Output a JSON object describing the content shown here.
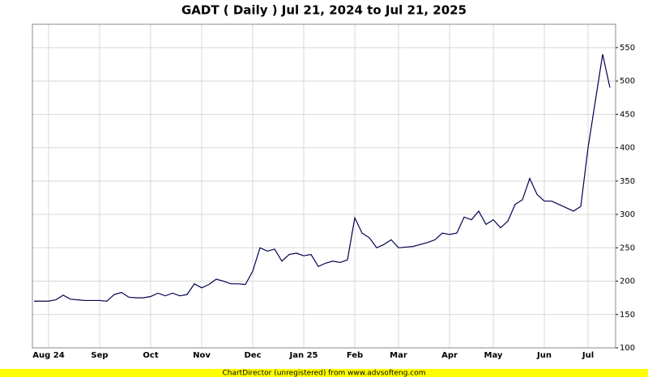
{
  "chart_data": {
    "type": "line",
    "title": "GADT ( Daily ) Jul 21, 2024 to Jul 21, 2025",
    "footer": "ChartDirector (unregistered) from www.advsofteng.com",
    "categories": [
      null,
      null,
      "Aug 24",
      null,
      null,
      null,
      null,
      null,
      null,
      "Sep",
      null,
      null,
      null,
      null,
      null,
      null,
      "Oct",
      null,
      null,
      null,
      null,
      null,
      null,
      "Nov",
      null,
      null,
      null,
      null,
      null,
      null,
      "Dec",
      null,
      null,
      null,
      null,
      null,
      null,
      "Jan 25",
      null,
      null,
      null,
      null,
      null,
      null,
      "Feb",
      null,
      null,
      null,
      null,
      null,
      "Mar",
      null,
      null,
      null,
      null,
      null,
      null,
      "Apr",
      null,
      null,
      null,
      null,
      null,
      "May",
      null,
      null,
      null,
      null,
      null,
      null,
      "Jun",
      null,
      null,
      null,
      null,
      null,
      "Jul",
      null,
      null,
      null
    ],
    "values": [
      170,
      170,
      170,
      172,
      179,
      173,
      172,
      171,
      171,
      171,
      170,
      180,
      183,
      176,
      175,
      175,
      177,
      182,
      178,
      182,
      178,
      180,
      196,
      190,
      195,
      203,
      200,
      196,
      196,
      195,
      215,
      250,
      245,
      248,
      230,
      240,
      242,
      238,
      240,
      222,
      227,
      230,
      228,
      232,
      295,
      272,
      265,
      250,
      255,
      262,
      250,
      251,
      252,
      255,
      258,
      262,
      272,
      270,
      272,
      296,
      292,
      305,
      285,
      292,
      280,
      290,
      315,
      322,
      354,
      330,
      320,
      320,
      315,
      310,
      305,
      312,
      400,
      470,
      540,
      490
    ],
    "color": "#000050",
    "ylim": [
      100,
      585
    ],
    "yticks": [
      100,
      150,
      200,
      250,
      300,
      350,
      400,
      450,
      500,
      550
    ],
    "grid": true
  }
}
